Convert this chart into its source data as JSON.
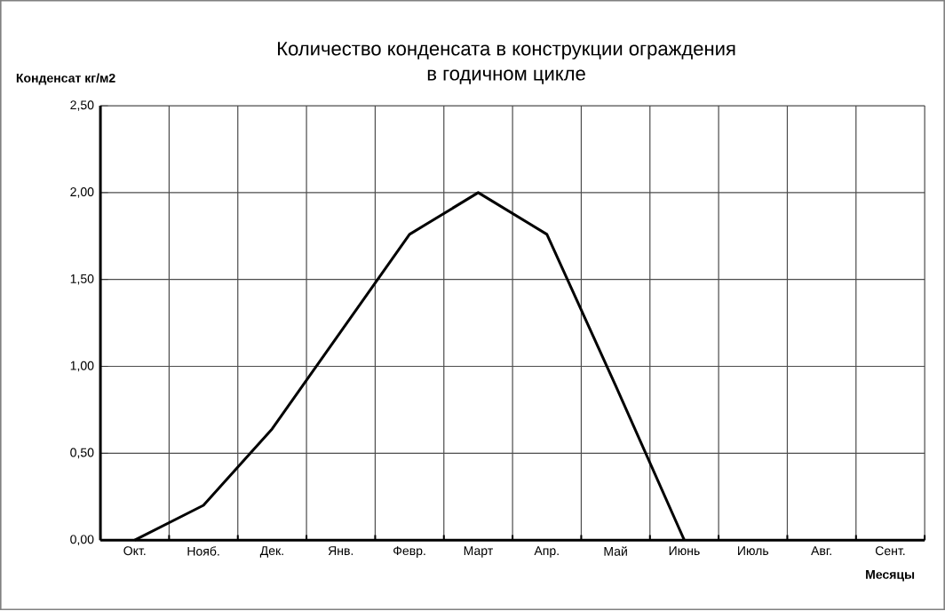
{
  "chart_data": {
    "type": "line",
    "title": "Количество конденсата в конструкции ограждения\nв годичном цикле",
    "ylabel": "Конденсат кг/м2",
    "xlabel": "Месяцы",
    "categories": [
      "Окт.",
      "Нояб.",
      "Дек.",
      "Янв.",
      "Февр.",
      "Март",
      "Апр.",
      "Май",
      "Июнь",
      "Июль",
      "Авг.",
      "Сент."
    ],
    "series": [
      {
        "color": "#000000",
        "values": [
          0,
          0.2,
          0.64,
          1.2,
          1.76,
          2.0,
          1.76,
          0.89,
          0,
          null,
          null,
          null
        ]
      }
    ],
    "ylim": [
      0,
      2.5
    ],
    "yticks": [
      {
        "value": 0,
        "label": "0,00"
      },
      {
        "value": 0.5,
        "label": "0,50"
      },
      {
        "value": 1,
        "label": "1,00"
      },
      {
        "value": 1.5,
        "label": "1,50"
      },
      {
        "value": 2,
        "label": "2,00"
      },
      {
        "value": 2.5,
        "label": "2,50"
      }
    ],
    "grid": true,
    "marker": "none",
    "line_style": "solid"
  }
}
